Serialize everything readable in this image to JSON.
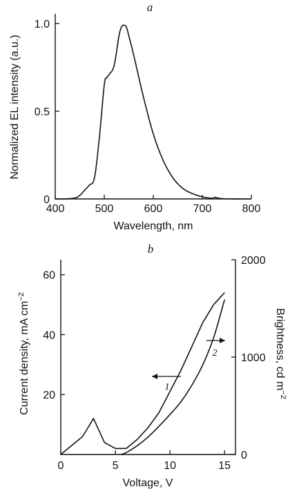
{
  "chart_data": [
    {
      "type": "line",
      "panel_label": "a",
      "xlabel": "Wavelength, nm",
      "ylabel": "Normalized EL intensity (a.u.)",
      "xlim": [
        400,
        800
      ],
      "ylim": [
        0,
        1.0
      ],
      "xticks": [
        400,
        500,
        600,
        700,
        800
      ],
      "yticks": [
        0,
        0.5,
        1.0
      ],
      "ytick_labels": [
        "0",
        "0.5",
        "1.0"
      ],
      "grid": false,
      "series": [
        {
          "x": [
            400,
            420,
            440,
            450,
            460,
            470,
            480,
            490,
            500,
            505,
            510,
            520,
            530,
            535,
            540,
            545,
            550,
            560,
            580,
            600,
            620,
            640,
            660,
            680,
            700,
            720,
            725,
            730,
            740,
            760,
            780,
            800
          ],
          "values": [
            0.0,
            0.0,
            0.005,
            0.02,
            0.05,
            0.08,
            0.12,
            0.35,
            0.65,
            0.69,
            0.71,
            0.76,
            0.93,
            0.98,
            0.99,
            0.98,
            0.93,
            0.82,
            0.58,
            0.37,
            0.22,
            0.12,
            0.06,
            0.03,
            0.012,
            0.004,
            0.01,
            0.006,
            0.002,
            0.0,
            0.0,
            0.0
          ]
        }
      ]
    },
    {
      "type": "line",
      "panel_label": "b",
      "xlabel": "Voltage, V",
      "ylabel": "Current density, mA cm",
      "ylabel_sup": "−2",
      "ylabel_right": "Brightness, cd m",
      "ylabel_right_sup": "−2",
      "xlim": [
        0,
        16
      ],
      "ylim": [
        0,
        65
      ],
      "ylim_right": [
        0,
        2000
      ],
      "xticks": [
        0,
        5,
        10,
        15
      ],
      "yticks": [
        20,
        40,
        60
      ],
      "yticks_right": [
        0,
        1000,
        2000
      ],
      "grid": false,
      "series": [
        {
          "name": "1",
          "axis": "left",
          "x": [
            0,
            2,
            3,
            4,
            5,
            6,
            7,
            8,
            9,
            10,
            11,
            12,
            13,
            14,
            15
          ],
          "values": [
            0,
            6,
            12,
            4,
            2,
            2,
            5,
            9,
            14,
            21,
            28,
            36,
            44,
            50,
            54
          ]
        },
        {
          "name": "2",
          "axis": "right",
          "x": [
            5.5,
            6,
            7,
            8,
            9,
            10,
            11,
            12,
            13,
            14,
            15
          ],
          "values": [
            0,
            20,
            90,
            180,
            290,
            410,
            540,
            710,
            920,
            1200,
            1590
          ]
        }
      ]
    }
  ]
}
